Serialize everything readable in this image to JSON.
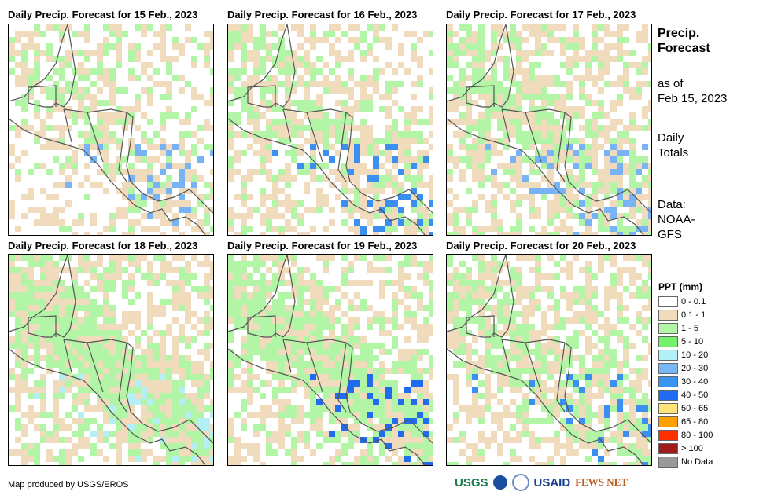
{
  "panels": [
    {
      "title": "Daily Precip. Forecast for 15 Feb., 2023",
      "rain": [
        [
          "#f0dcbc",
          0.3
        ],
        [
          "#b3f5a6",
          0.25
        ],
        [
          "#78b4f5",
          0.08
        ]
      ]
    },
    {
      "title": "Daily Precip. Forecast for 16 Feb., 2023",
      "rain": [
        [
          "#f0dcbc",
          0.35
        ],
        [
          "#b3f5a6",
          0.3
        ],
        [
          "#3a8ff0",
          0.08
        ]
      ]
    },
    {
      "title": "Daily Precip. Forecast for 17 Feb., 2023",
      "rain": [
        [
          "#f0dcbc",
          0.35
        ],
        [
          "#b3f5a6",
          0.35
        ],
        [
          "#78b4f5",
          0.1
        ]
      ]
    },
    {
      "title": "Daily Precip. Forecast for 18 Feb., 2023",
      "rain": [
        [
          "#f0dcbc",
          0.35
        ],
        [
          "#b3f5a6",
          0.5
        ],
        [
          "#b2f0f5",
          0.08
        ]
      ]
    },
    {
      "title": "Daily Precip. Forecast for 19 Feb., 2023",
      "rain": [
        [
          "#f0dcbc",
          0.3
        ],
        [
          "#b3f5a6",
          0.5
        ],
        [
          "#1f6cf0",
          0.06
        ]
      ]
    },
    {
      "title": "Daily Precip. Forecast for 20 Feb., 2023",
      "rain": [
        [
          "#f0dcbc",
          0.35
        ],
        [
          "#b3f5a6",
          0.35
        ],
        [
          "#3a8ff0",
          0.07
        ]
      ]
    }
  ],
  "side": {
    "title1": "Precip.",
    "title2": "Forecast",
    "asof1": "as of",
    "asof2": "Feb 15, 2023",
    "daily1": "Daily",
    "daily2": "Totals",
    "data1": "Data:",
    "data2": "NOAA-",
    "data3": "GFS"
  },
  "legend": {
    "title": "PPT (mm)",
    "items": [
      {
        "label": "0 - 0.1",
        "color": "#ffffff"
      },
      {
        "label": "0.1 - 1",
        "color": "#f0dcbc"
      },
      {
        "label": "1 - 5",
        "color": "#b3f5a6"
      },
      {
        "label": "5 - 10",
        "color": "#74f06a"
      },
      {
        "label": "10 - 20",
        "color": "#b2f0f8"
      },
      {
        "label": "20 - 30",
        "color": "#78b8f5"
      },
      {
        "label": "30 - 40",
        "color": "#3a94f0"
      },
      {
        "label": "40 - 50",
        "color": "#1f6cf0"
      },
      {
        "label": "50 - 65",
        "color": "#ffe47a"
      },
      {
        "label": "65 - 80",
        "color": "#ff9f00"
      },
      {
        "label": "80 - 100",
        "color": "#ff3000"
      },
      {
        "label": "> 100",
        "color": "#a01c1c"
      },
      {
        "label": "No Data",
        "color": "#999999"
      }
    ]
  },
  "credit": "Map produced by USGS/EROS",
  "logos": {
    "usgs": "USGS",
    "usaid": "USAID",
    "fews": "FEWS NET"
  }
}
